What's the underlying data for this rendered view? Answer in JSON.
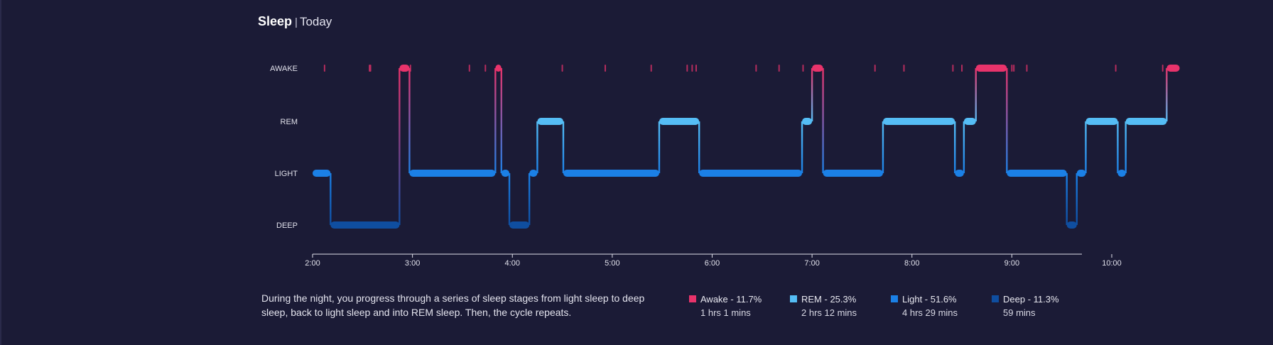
{
  "header": {
    "title": "Sleep",
    "separator": "|",
    "period": "Today"
  },
  "description": "During the night, you progress through a series of sleep stages from light sleep to deep sleep, back to light sleep and into REM sleep. Then, the cycle repeats.",
  "colors": {
    "background": "#1b1b36",
    "awake": "#e8336b",
    "rem": "#55bdf5",
    "light": "#1b80e6",
    "deep": "#0f4ea0",
    "axis": "#e0e0ea"
  },
  "legend": [
    {
      "stage": "awake",
      "label": "Awake - 11.7%",
      "duration": "1 hrs 1 mins"
    },
    {
      "stage": "rem",
      "label": "REM - 25.3%",
      "duration": "2 hrs 12 mins"
    },
    {
      "stage": "light",
      "label": "Light - 51.6%",
      "duration": "4 hrs 29 mins"
    },
    {
      "stage": "deep",
      "label": "Deep - 11.3%",
      "duration": "59 mins"
    }
  ],
  "chart_data": {
    "type": "line",
    "x_unit": "hours",
    "xlim": [
      2.0,
      10.7
    ],
    "y_categories": [
      "AWAKE",
      "REM",
      "LIGHT",
      "DEEP"
    ],
    "x_ticks": [
      2,
      3,
      4,
      5,
      6,
      7,
      8,
      9,
      10
    ],
    "x_tick_labels": [
      "2:00",
      "3:00",
      "4:00",
      "5:00",
      "6:00",
      "7:00",
      "8:00",
      "9:00",
      "10:00"
    ],
    "segments": [
      {
        "stage": "LIGHT",
        "start": 2.0,
        "end": 2.18
      },
      {
        "stage": "DEEP",
        "start": 2.18,
        "end": 2.87
      },
      {
        "stage": "AWAKE",
        "start": 2.87,
        "end": 2.97
      },
      {
        "stage": "LIGHT",
        "start": 2.97,
        "end": 3.83
      },
      {
        "stage": "AWAKE",
        "start": 3.83,
        "end": 3.89
      },
      {
        "stage": "LIGHT",
        "start": 3.89,
        "end": 3.97
      },
      {
        "stage": "DEEP",
        "start": 3.97,
        "end": 4.17
      },
      {
        "stage": "LIGHT",
        "start": 4.17,
        "end": 4.25
      },
      {
        "stage": "REM",
        "start": 4.25,
        "end": 4.51
      },
      {
        "stage": "LIGHT",
        "start": 4.51,
        "end": 5.47
      },
      {
        "stage": "REM",
        "start": 5.47,
        "end": 5.87
      },
      {
        "stage": "LIGHT",
        "start": 5.87,
        "end": 6.9
      },
      {
        "stage": "REM",
        "start": 6.9,
        "end": 7.0
      },
      {
        "stage": "AWAKE",
        "start": 7.0,
        "end": 7.11
      },
      {
        "stage": "LIGHT",
        "start": 7.11,
        "end": 7.71
      },
      {
        "stage": "REM",
        "start": 7.71,
        "end": 8.43
      },
      {
        "stage": "LIGHT",
        "start": 8.43,
        "end": 8.52
      },
      {
        "stage": "REM",
        "start": 8.52,
        "end": 8.64
      },
      {
        "stage": "AWAKE",
        "start": 8.64,
        "end": 8.95
      },
      {
        "stage": "LIGHT",
        "start": 8.95,
        "end": 9.55
      },
      {
        "stage": "DEEP",
        "start": 9.55,
        "end": 9.65
      },
      {
        "stage": "LIGHT",
        "start": 9.65,
        "end": 9.74
      },
      {
        "stage": "REM",
        "start": 9.74,
        "end": 10.06
      },
      {
        "stage": "LIGHT",
        "start": 10.06,
        "end": 10.14
      },
      {
        "stage": "REM",
        "start": 10.14,
        "end": 10.55
      },
      {
        "stage": "AWAKE",
        "start": 10.55,
        "end": 10.68
      }
    ],
    "brief_awakenings": [
      2.12,
      2.57,
      2.58,
      2.98,
      3.57,
      3.73,
      4.5,
      4.93,
      5.39,
      5.75,
      5.8,
      5.84,
      6.44,
      6.67,
      6.91,
      7.63,
      7.92,
      8.41,
      8.5,
      9.0,
      9.02,
      9.15,
      10.04,
      10.51
    ]
  }
}
